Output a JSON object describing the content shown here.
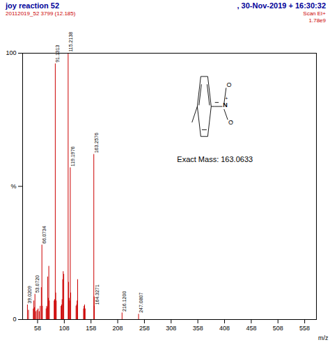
{
  "chart_data": {
    "type": "bar",
    "title": "joy reaction 52",
    "subtitle": "20112019_52 3799 (12.185)",
    "header_right": [
      ", 30-Nov-2019 + 16:30:32",
      "Scan EI+",
      "1.78e9"
    ],
    "title_color": "#000099",
    "subtitle_color": "#cc0000",
    "xlabel": "m/z",
    "x": [
      39.0209,
      41,
      50,
      51,
      52,
      53.072,
      55,
      57,
      59,
      61,
      63,
      65,
      66.0734,
      67,
      74,
      75,
      76,
      77,
      78,
      79,
      80,
      89,
      90,
      91.1313,
      92,
      93,
      102,
      103,
      104,
      105,
      106,
      107,
      115.2138,
      116,
      117,
      118,
      119.1976,
      120,
      130,
      131,
      132,
      133,
      144,
      145,
      146,
      147,
      163.2576,
      164,
      164.3271,
      216.12,
      247.0807
    ],
    "values": [
      5.5,
      3.5,
      4.0,
      7.0,
      4.5,
      9.5,
      3.0,
      3.5,
      4.0,
      3.0,
      5.0,
      12.0,
      28.0,
      5.0,
      4.0,
      5.0,
      4.5,
      16.0,
      8.0,
      20.0,
      7.0,
      7.0,
      7.5,
      96.0,
      10.0,
      7.0,
      5.0,
      5.5,
      7.5,
      15.0,
      18.0,
      17.0,
      100.0,
      14.0,
      8.0,
      7.0,
      57.0,
      10.0,
      5.0,
      5.5,
      7.0,
      15.0,
      4.0,
      5.0,
      5.5,
      4.0,
      62.0,
      8.5,
      5.0,
      2.5,
      2.0
    ],
    "point_labels": [
      "39.0209",
      null,
      null,
      null,
      null,
      "53.0720",
      null,
      null,
      null,
      null,
      null,
      null,
      "66.0734",
      null,
      null,
      null,
      null,
      null,
      null,
      null,
      null,
      null,
      null,
      "91.1313",
      null,
      null,
      null,
      null,
      null,
      null,
      null,
      null,
      "115.2138",
      null,
      null,
      null,
      "119.1976",
      null,
      null,
      null,
      null,
      null,
      null,
      null,
      null,
      null,
      "163.2576",
      null,
      "164.3271",
      "216.1200",
      "247.0807"
    ],
    "color": "#cc0000",
    "data_labels": true,
    "xlim": [
      30,
      580
    ],
    "xticks": [
      58,
      108,
      158,
      208,
      258,
      308,
      358,
      408,
      458,
      508,
      558
    ],
    "ylim": [
      0,
      100
    ],
    "yticks": [
      0,
      {
        "value": 50,
        "label": "%"
      },
      100
    ],
    "grid": false,
    "annotations": [
      "Exact Mass: 163.0633",
      "N",
      "+",
      "O",
      "O",
      "⁻"
    ]
  }
}
